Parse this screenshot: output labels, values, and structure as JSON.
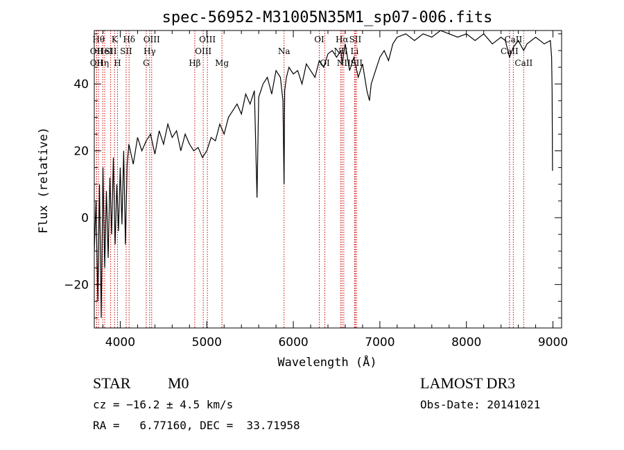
{
  "chart_data": {
    "type": "line",
    "title": "spec-56952-M31005N35M1_sp07-006.fits",
    "xlabel": "Wavelength (Å)",
    "ylabel": "Flux (relative)",
    "xlim": [
      3700,
      9100
    ],
    "ylim": [
      -33,
      56
    ],
    "xticks": [
      4000,
      5000,
      6000,
      7000,
      8000,
      9000
    ],
    "yticks": [
      -20,
      0,
      20,
      40
    ],
    "grid": false,
    "series": [
      {
        "x": [
          3700,
          3720,
          3740,
          3760,
          3780,
          3800,
          3820,
          3840,
          3860,
          3880,
          3900,
          3920,
          3940,
          3960,
          3980,
          4000,
          4020,
          4040,
          4060,
          4080,
          4100,
          4150,
          4200,
          4250,
          4300,
          4350,
          4400,
          4450,
          4500,
          4550,
          4600,
          4650,
          4700,
          4750,
          4800,
          4850,
          4900,
          4950,
          5000,
          5050,
          5100,
          5150,
          5200,
          5250,
          5300,
          5350,
          5400,
          5450,
          5500,
          5550,
          5580,
          5600,
          5650,
          5700,
          5750,
          5800,
          5850,
          5880,
          5893,
          5900,
          5920,
          5950,
          6000,
          6050,
          6100,
          6150,
          6200,
          6250,
          6300,
          6350,
          6400,
          6450,
          6500,
          6550,
          6563,
          6600,
          6650,
          6700,
          6750,
          6800,
          6850,
          6880,
          6900,
          6950,
          7000,
          7050,
          7100,
          7150,
          7200,
          7300,
          7400,
          7500,
          7600,
          7700,
          7800,
          7900,
          8000,
          8100,
          8200,
          8300,
          8400,
          8450,
          8498,
          8542,
          8600,
          8662,
          8700,
          8800,
          8900,
          8970,
          8985,
          8990,
          8995
        ],
        "y": [
          -10,
          5,
          -25,
          10,
          -30,
          15,
          -15,
          8,
          -12,
          12,
          -5,
          18,
          -8,
          10,
          -4,
          15,
          -2,
          20,
          -8,
          16,
          22,
          16,
          24,
          20,
          23,
          25,
          19,
          26,
          22,
          28,
          24,
          26,
          20,
          25,
          22,
          20,
          21,
          18,
          20,
          24,
          23,
          28,
          25,
          30,
          32,
          34,
          31,
          37,
          34,
          38,
          6,
          36,
          40,
          42,
          37,
          44,
          42,
          35,
          10,
          38,
          42,
          45,
          43,
          44,
          40,
          46,
          44,
          42,
          47,
          45,
          49,
          50,
          48,
          50,
          46,
          52,
          44,
          48,
          42,
          46,
          38,
          35,
          40,
          44,
          48,
          50,
          47,
          52,
          54,
          55,
          53,
          55,
          54,
          56,
          55,
          54,
          55,
          53,
          55,
          52,
          54,
          53,
          48,
          51,
          53,
          50,
          52,
          54,
          52,
          53,
          48,
          38,
          14
        ]
      }
    ],
    "line_markers": [
      {
        "x": 3750,
        "row": 1,
        "label": "Hθ"
      },
      {
        "x": 3727,
        "row": 2,
        "label": "OII"
      },
      {
        "x": 3727,
        "row": 3,
        "label": "OII"
      },
      {
        "x": 3798,
        "row": 3,
        "label": "Hη"
      },
      {
        "x": 3820,
        "row": 2,
        "label": "HeI"
      },
      {
        "x": 3934,
        "row": 1,
        "label": "K"
      },
      {
        "x": 3968,
        "row": 3,
        "label": "H"
      },
      {
        "x": 3889,
        "row": 2,
        "label": "SII"
      },
      {
        "x": 4102,
        "row": 1,
        "label": "Hδ"
      },
      {
        "x": 4068,
        "row": 2,
        "label": "SII"
      },
      {
        "x": 4300,
        "row": 3,
        "label": "G"
      },
      {
        "x": 4340,
        "row": 2,
        "label": "Hγ"
      },
      {
        "x": 4363,
        "row": 1,
        "label": "OIII"
      },
      {
        "x": 4861,
        "row": 3,
        "label": "Hβ"
      },
      {
        "x": 4959,
        "row": 2,
        "label": "OIII"
      },
      {
        "x": 5007,
        "row": 1,
        "label": "OIII"
      },
      {
        "x": 5175,
        "row": 3,
        "label": "Mg"
      },
      {
        "x": 5893,
        "row": 2,
        "label": "Na"
      },
      {
        "x": 6300,
        "row": 1,
        "label": "OI"
      },
      {
        "x": 6364,
        "row": 3,
        "label": "OI"
      },
      {
        "x": 6548,
        "row": 2,
        "label": "NII"
      },
      {
        "x": 6563,
        "row": 1,
        "label": "Hα"
      },
      {
        "x": 6583,
        "row": 3,
        "label": "NII"
      },
      {
        "x": 6708,
        "row": 2,
        "label": "Li"
      },
      {
        "x": 6716,
        "row": 1,
        "label": "SII"
      },
      {
        "x": 6731,
        "row": 3,
        "label": "SII"
      },
      {
        "x": 8498,
        "row": 2,
        "label": "CaII"
      },
      {
        "x": 8542,
        "row": 1,
        "label": "CaII"
      },
      {
        "x": 8662,
        "row": 3,
        "label": "CaII"
      }
    ],
    "marker_color": "#cc0000",
    "line_color": "#000000"
  },
  "info": {
    "object_class": "STAR",
    "subclass": "M0",
    "cz": "cz = −16.2 ± 4.5 km/s",
    "coords": "RA =   6.77160, DEC =  33.71958",
    "survey": "LAMOST DR3",
    "obs_date": "Obs-Date: 20141021"
  }
}
